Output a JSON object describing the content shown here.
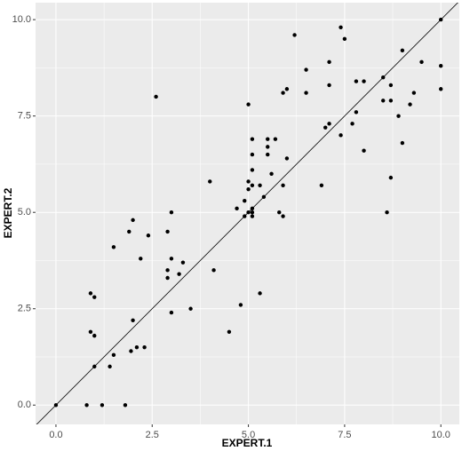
{
  "chart_data": {
    "type": "scatter",
    "x_label": "EXPERT.1",
    "y_label": "EXPERT.2",
    "x": [
      0,
      0.8,
      1.2,
      1.8,
      1.0,
      1.4,
      1.5,
      1.95,
      2.1,
      2.3,
      0.9,
      1.0,
      2.0,
      0.9,
      1.0,
      3.0,
      3.5,
      4.5,
      4.8,
      5.3,
      1.5,
      2.2,
      1.9,
      2.0,
      2.4,
      2.9,
      3.0,
      2.9,
      2.9,
      3.0,
      3.2,
      3.3,
      4.1,
      4.0,
      2.6,
      4.7,
      4.9,
      4.9,
      5.0,
      5.1,
      5.1,
      5.0,
      5.1,
      5.1,
      5.1,
      5.0,
      5.1,
      5.0,
      5.1,
      5.3,
      5.4,
      5.5,
      5.5,
      5.5,
      5.7,
      5.6,
      5.8,
      5.9,
      5.9,
      6.0,
      5.9,
      6.0,
      6.2,
      6.5,
      6.5,
      6.9,
      7.0,
      7.1,
      7.1,
      7.1,
      7.4,
      7.4,
      7.5,
      7.7,
      7.8,
      7.8,
      8.0,
      8.0,
      8.5,
      8.5,
      8.6,
      8.7,
      8.7,
      8.7,
      8.9,
      9.0,
      9.0,
      9.2,
      9.3,
      9.5,
      10,
      10,
      10
    ],
    "y": [
      0,
      0,
      0,
      0,
      1.0,
      1.0,
      1.3,
      1.4,
      1.5,
      1.5,
      1.9,
      1.8,
      2.2,
      2.9,
      2.8,
      2.4,
      2.5,
      1.9,
      2.6,
      2.9,
      4.1,
      3.8,
      4.5,
      4.8,
      4.4,
      4.5,
      5.0,
      3.5,
      3.3,
      3.8,
      3.4,
      3.7,
      3.5,
      5.8,
      8.0,
      5.1,
      5.3,
      4.9,
      5.0,
      5.0,
      5.1,
      7.8,
      6.9,
      6.5,
      6.1,
      5.8,
      5.7,
      5.6,
      4.9,
      5.7,
      5.4,
      6.9,
      6.7,
      6.5,
      6.9,
      6.0,
      5.0,
      4.9,
      5.7,
      6.4,
      8.1,
      8.2,
      9.6,
      8.7,
      8.1,
      5.7,
      7.2,
      7.3,
      8.3,
      8.9,
      7.0,
      9.8,
      9.5,
      7.3,
      7.6,
      8.4,
      8.4,
      6.6,
      8.5,
      7.9,
      5.0,
      8.3,
      7.9,
      5.9,
      7.5,
      6.8,
      9.2,
      7.8,
      8.1,
      8.9,
      10,
      8.8,
      8.2
    ],
    "color": "#000000",
    "abline": {
      "slope": 1,
      "intercept": 0
    },
    "xlim": [
      -0.53,
      10.48
    ],
    "ylim": [
      -0.5,
      10.44
    ],
    "xticks": [
      {
        "value": 0,
        "label": "0.0"
      },
      {
        "value": 2.5,
        "label": "2.5"
      },
      {
        "value": 5,
        "label": "5.0"
      },
      {
        "value": 7.5,
        "label": "7.5"
      },
      {
        "value": 10,
        "label": "10.0"
      }
    ],
    "yticks": [
      {
        "value": 0,
        "label": "0.0"
      },
      {
        "value": 2.5,
        "label": "2.5"
      },
      {
        "value": 5,
        "label": "5.0"
      },
      {
        "value": 7.5,
        "label": "7.5"
      },
      {
        "value": 10,
        "label": "10.0"
      }
    ],
    "grid": true
  }
}
